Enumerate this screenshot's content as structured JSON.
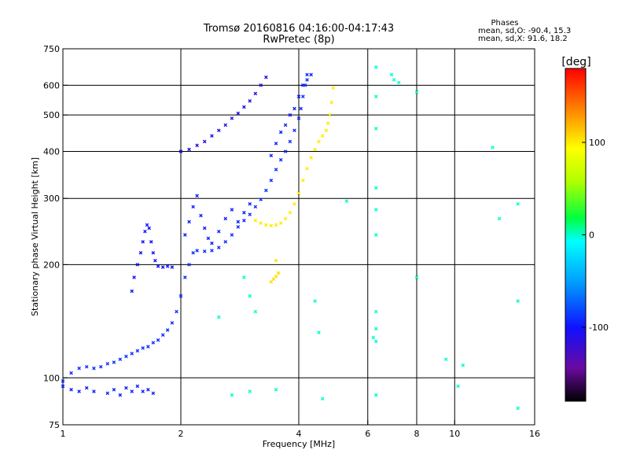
{
  "chart_data": {
    "type": "scatter",
    "title": "Tromsø 20160816 04:16:00-04:17:43",
    "subtitle": "RwPretec (8p)",
    "xlabel": "Frequency [MHz]",
    "ylabel": "Stationary phase Virtual Height [km]",
    "x_scale": "log",
    "y_scale": "log",
    "xlim": [
      1,
      16
    ],
    "ylim": [
      75,
      750
    ],
    "x_ticks": [
      {
        "value": 1,
        "label": "1"
      },
      {
        "value": 2,
        "label": "2"
      },
      {
        "value": 4,
        "label": "4"
      },
      {
        "value": 6,
        "label": "6"
      },
      {
        "value": 8,
        "label": "8"
      },
      {
        "value": 10,
        "label": "10"
      },
      {
        "value": 16,
        "label": "16"
      }
    ],
    "y_ticks": [
      {
        "value": 75,
        "label": "75"
      },
      {
        "value": 100,
        "label": "100"
      },
      {
        "value": 200,
        "label": "200"
      },
      {
        "value": 300,
        "label": "300"
      },
      {
        "value": 400,
        "label": "400"
      },
      {
        "value": 500,
        "label": "500"
      },
      {
        "value": 600,
        "label": "600"
      },
      {
        "value": 750,
        "label": "750"
      }
    ],
    "x_gridlines": [
      2,
      4,
      6,
      8,
      10
    ],
    "y_gridlines": [
      100,
      200,
      300,
      400,
      500,
      600
    ],
    "stats": {
      "title": "Phases",
      "line_o": "mean, sd,O: -90.4, 15.3",
      "line_x": "mean, sd,X:  91.6, 18.2"
    },
    "colorbar": {
      "label": "[deg]",
      "range": [
        -180,
        180
      ],
      "ticks": [
        {
          "value": 100,
          "label": "100"
        },
        {
          "value": 0,
          "label": "0"
        },
        {
          "value": -100,
          "label": "-100"
        }
      ]
    },
    "series": [
      {
        "name": "O-mode trace",
        "phase_deg": -90,
        "points": [
          [
            1.0,
            98
          ],
          [
            1.05,
            103
          ],
          [
            1.1,
            106
          ],
          [
            1.15,
            107
          ],
          [
            1.2,
            106
          ],
          [
            1.25,
            107
          ],
          [
            1.3,
            109
          ],
          [
            1.35,
            110
          ],
          [
            1.4,
            112
          ],
          [
            1.45,
            114
          ],
          [
            1.5,
            116
          ],
          [
            1.55,
            118
          ],
          [
            1.6,
            120
          ],
          [
            1.65,
            121
          ],
          [
            1.7,
            124
          ],
          [
            1.75,
            126
          ],
          [
            1.8,
            130
          ],
          [
            1.85,
            134
          ],
          [
            1.9,
            140
          ],
          [
            1.95,
            150
          ],
          [
            2.0,
            165
          ],
          [
            2.05,
            185
          ],
          [
            2.1,
            200
          ],
          [
            2.15,
            215
          ],
          [
            2.2,
            218
          ],
          [
            2.3,
            217
          ],
          [
            2.4,
            218
          ],
          [
            2.5,
            222
          ],
          [
            2.6,
            230
          ],
          [
            2.7,
            240
          ],
          [
            2.8,
            252
          ],
          [
            2.9,
            262
          ],
          [
            3.0,
            272
          ],
          [
            3.1,
            285
          ],
          [
            3.2,
            298
          ],
          [
            3.3,
            315
          ],
          [
            3.4,
            335
          ],
          [
            3.5,
            358
          ],
          [
            3.6,
            380
          ],
          [
            3.7,
            400
          ],
          [
            3.8,
            425
          ],
          [
            3.9,
            455
          ],
          [
            4.0,
            490
          ],
          [
            4.05,
            520
          ],
          [
            4.1,
            560
          ],
          [
            4.15,
            600
          ],
          [
            4.2,
            640
          ]
        ]
      },
      {
        "name": "O-mode spread F",
        "phase_deg": -95,
        "points": [
          [
            2.05,
            240
          ],
          [
            2.1,
            260
          ],
          [
            2.15,
            285
          ],
          [
            2.2,
            305
          ],
          [
            2.25,
            270
          ],
          [
            2.3,
            250
          ],
          [
            2.35,
            235
          ],
          [
            2.4,
            228
          ],
          [
            2.5,
            245
          ],
          [
            2.6,
            265
          ],
          [
            2.7,
            280
          ],
          [
            2.8,
            260
          ],
          [
            2.9,
            275
          ],
          [
            3.0,
            290
          ],
          [
            3.4,
            390
          ],
          [
            3.5,
            420
          ],
          [
            3.6,
            450
          ],
          [
            3.7,
            470
          ],
          [
            3.8,
            500
          ],
          [
            3.9,
            520
          ],
          [
            4.0,
            560
          ],
          [
            4.1,
            600
          ],
          [
            4.2,
            620
          ],
          [
            4.3,
            640
          ]
        ]
      },
      {
        "name": "Upper O-mode trace",
        "phase_deg": -110,
        "points": [
          [
            2.0,
            400
          ],
          [
            2.1,
            405
          ],
          [
            2.2,
            415
          ],
          [
            2.3,
            425
          ],
          [
            2.4,
            440
          ],
          [
            2.5,
            455
          ],
          [
            2.6,
            470
          ],
          [
            2.7,
            490
          ],
          [
            2.8,
            505
          ],
          [
            2.9,
            525
          ],
          [
            3.0,
            545
          ],
          [
            3.1,
            570
          ],
          [
            3.2,
            600
          ],
          [
            3.3,
            630
          ]
        ]
      },
      {
        "name": "Lower E/Es echoes",
        "phase_deg": -95,
        "points": [
          [
            1.0,
            95
          ],
          [
            1.05,
            93
          ],
          [
            1.1,
            92
          ],
          [
            1.15,
            94
          ],
          [
            1.2,
            92
          ],
          [
            1.3,
            91
          ],
          [
            1.35,
            93
          ],
          [
            1.4,
            90
          ],
          [
            1.45,
            94
          ],
          [
            1.5,
            92
          ],
          [
            1.55,
            95
          ],
          [
            1.6,
            92
          ],
          [
            1.65,
            93
          ],
          [
            1.7,
            91
          ]
        ]
      },
      {
        "name": "Es cusp",
        "phase_deg": -100,
        "points": [
          [
            1.5,
            170
          ],
          [
            1.52,
            185
          ],
          [
            1.55,
            200
          ],
          [
            1.58,
            215
          ],
          [
            1.6,
            230
          ],
          [
            1.62,
            245
          ],
          [
            1.64,
            255
          ],
          [
            1.66,
            250
          ],
          [
            1.68,
            230
          ],
          [
            1.7,
            215
          ],
          [
            1.72,
            205
          ],
          [
            1.75,
            198
          ],
          [
            1.8,
            197
          ],
          [
            1.85,
            198
          ],
          [
            1.9,
            197
          ]
        ]
      },
      {
        "name": "X-mode trace",
        "phase_deg": 100,
        "points": [
          [
            3.1,
            262
          ],
          [
            3.2,
            258
          ],
          [
            3.3,
            255
          ],
          [
            3.4,
            254
          ],
          [
            3.5,
            255
          ],
          [
            3.6,
            258
          ],
          [
            3.7,
            265
          ],
          [
            3.8,
            275
          ],
          [
            3.9,
            290
          ],
          [
            4.0,
            310
          ],
          [
            4.1,
            335
          ],
          [
            4.2,
            360
          ],
          [
            4.3,
            385
          ],
          [
            4.4,
            405
          ],
          [
            4.5,
            425
          ],
          [
            4.6,
            440
          ],
          [
            4.7,
            455
          ],
          [
            4.75,
            475
          ],
          [
            4.8,
            500
          ],
          [
            4.85,
            540
          ],
          [
            4.9,
            590
          ]
        ]
      },
      {
        "name": "X-mode patch",
        "phase_deg": 105,
        "points": [
          [
            3.4,
            180
          ],
          [
            3.45,
            183
          ],
          [
            3.5,
            186
          ],
          [
            3.55,
            190
          ],
          [
            3.5,
            205
          ]
        ]
      },
      {
        "name": "Scattered echoes",
        "phase_deg": 0,
        "points": [
          [
            6.3,
            670
          ],
          [
            6.3,
            560
          ],
          [
            6.3,
            460
          ],
          [
            6.3,
            320
          ],
          [
            6.3,
            280
          ],
          [
            6.3,
            240
          ],
          [
            6.3,
            150
          ],
          [
            6.3,
            135
          ],
          [
            6.3,
            90
          ],
          [
            6.9,
            640
          ],
          [
            7.0,
            620
          ],
          [
            7.2,
            610
          ],
          [
            8.0,
            575
          ],
          [
            8.0,
            185
          ],
          [
            9.5,
            112
          ],
          [
            10.2,
            95
          ],
          [
            10.5,
            108
          ],
          [
            12.5,
            410
          ],
          [
            13.0,
            265
          ],
          [
            14.5,
            290
          ],
          [
            14.5,
            160
          ],
          [
            14.5,
            83
          ],
          [
            4.4,
            160
          ],
          [
            4.5,
            132
          ],
          [
            4.6,
            88
          ],
          [
            2.7,
            90
          ],
          [
            3.0,
            92
          ],
          [
            3.5,
            93
          ],
          [
            2.9,
            185
          ],
          [
            3.0,
            165
          ],
          [
            3.1,
            150
          ],
          [
            2.5,
            145
          ],
          [
            5.3,
            295
          ],
          [
            6.2,
            128
          ],
          [
            6.3,
            125
          ]
        ]
      }
    ]
  }
}
